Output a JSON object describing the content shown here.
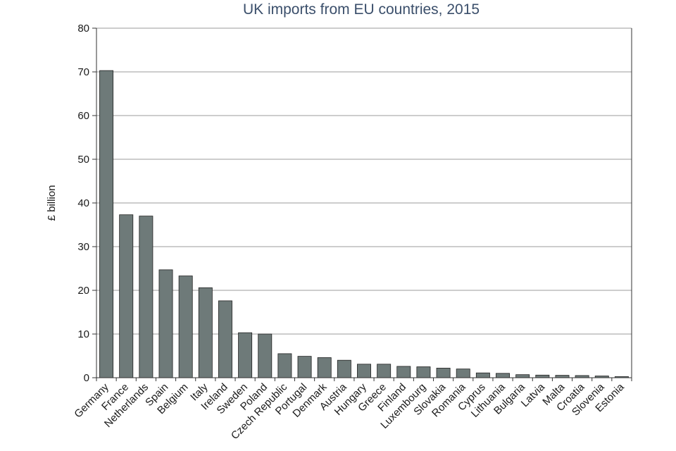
{
  "chart_data": {
    "type": "bar",
    "title": "UK imports from EU countries, 2015",
    "xlabel": "",
    "ylabel": "£ billion",
    "ylim": [
      0,
      80
    ],
    "yticks": [
      0,
      10,
      20,
      30,
      40,
      50,
      60,
      70,
      80
    ],
    "grid": true,
    "legend": "none",
    "bar_color": "#6e7a79",
    "categories": [
      "Germany",
      "France",
      "Netherlands",
      "Spain",
      "Belgium",
      "Italy",
      "Ireland",
      "Sweden",
      "Poland",
      "Czech Republic",
      "Portugal",
      "Denmark",
      "Austria",
      "Hungary",
      "Greece",
      "Finland",
      "Luxembourg",
      "Slovakia",
      "Romania",
      "Cyprus",
      "Lithuania",
      "Bulgaria",
      "Latvia",
      "Malta",
      "Croatia",
      "Slovenia",
      "Estonia"
    ],
    "values": [
      70.3,
      37.3,
      37.0,
      24.7,
      23.3,
      20.6,
      17.6,
      10.3,
      10.0,
      5.5,
      4.9,
      4.6,
      4.0,
      3.1,
      3.1,
      2.6,
      2.5,
      2.2,
      2.0,
      1.1,
      1.0,
      0.7,
      0.6,
      0.55,
      0.5,
      0.4,
      0.25
    ]
  }
}
